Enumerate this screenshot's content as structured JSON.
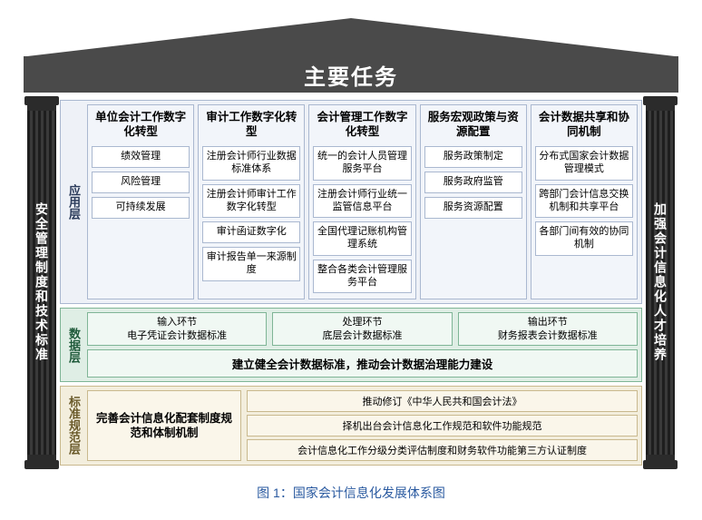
{
  "roof": {
    "title": "主要任务"
  },
  "pillar_left": {
    "label": "安全管理制度和技术标准"
  },
  "pillar_right": {
    "label": "加强会计信息化人才培养"
  },
  "layer_app": {
    "label": "应用层",
    "border_color": "#aab8d0",
    "bg_color": "#eef1f7",
    "columns": [
      {
        "header": "单位会计工作数字化转型",
        "items": [
          "绩效管理",
          "风险管理",
          "可持续发展"
        ]
      },
      {
        "header": "审计工作数字化转型",
        "items": [
          "注册会计师行业数据标准体系",
          "注册会计师审计工作数字化转型",
          "审计函证数字化",
          "审计报告单一来源制度"
        ]
      },
      {
        "header": "会计管理工作数字化转型",
        "items": [
          "统一的会计人员管理服务平台",
          "注册会计师行业统一监管信息平台",
          "全国代理记账机构管理系统",
          "整合各类会计管理服务平台"
        ]
      },
      {
        "header": "服务宏观政策与资源配置",
        "items": [
          "服务政策制定",
          "服务政府监管",
          "服务资源配置"
        ]
      },
      {
        "header": "会计数据共享和协同机制",
        "items": [
          "分布式国家会计数据管理模式",
          "跨部门会计信息交换机制和共享平台",
          "各部门间有效的协同机制"
        ]
      }
    ]
  },
  "layer_data": {
    "label": "数据层",
    "border_color": "#7fb596",
    "bg_color": "#dfeee5",
    "row1": [
      {
        "line1": "输入环节",
        "line2": "电子凭证会计数据标准"
      },
      {
        "line1": "处理环节",
        "line2": "底层会计数据标准"
      },
      {
        "line1": "输出环节",
        "line2": "财务报表会计数据标准"
      }
    ],
    "banner": "建立健全会计数据标准，推动会计数据治理能力建设"
  },
  "layer_std": {
    "label": "标准规范层",
    "border_color": "#c9b98e",
    "bg_color": "#f3eedd",
    "left": "完善会计信息化配套制度规范和体制机制",
    "right": [
      "推动修订《中华人民共和国会计法》",
      "择机出台会计信息化工作规范和软件功能规范",
      "会计信息化工作分级分类评估制度和财务软件功能第三方认证制度"
    ]
  },
  "caption": "图 1：国家会计信息化发展体系图",
  "colors": {
    "roof": "#4a4a4a",
    "pillar": "#2b2b2b",
    "caption": "#2a5aa0",
    "background": "#ffffff"
  },
  "fontsize": {
    "roof_title": 24,
    "col_header": 12.5,
    "item": 11,
    "caption": 14
  }
}
